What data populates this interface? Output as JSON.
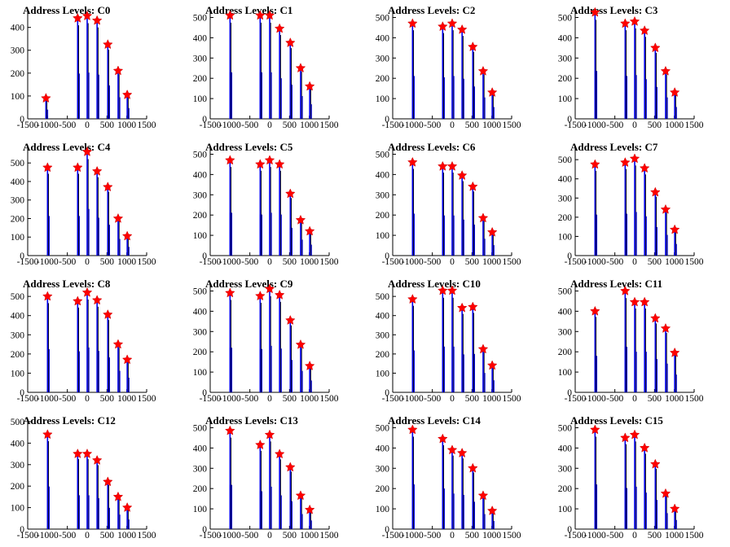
{
  "chart_data": [
    {
      "type": "bar",
      "title": "Address Levels: C0",
      "xlim": [
        -1500,
        1500
      ],
      "ylim": [
        0,
        470
      ],
      "yticks": [
        0,
        100,
        200,
        300,
        400
      ],
      "xticks": [
        -1500,
        -1000,
        -500,
        0,
        500,
        1000,
        1500
      ],
      "xtick_labels": [
        "-1500",
        "-1000",
        "-500",
        "0",
        "500",
        "1000",
        "1500"
      ],
      "peaks": [
        {
          "x": -1040,
          "y": 90
        },
        {
          "x": -240,
          "y": 440
        },
        {
          "x": 0,
          "y": 450
        },
        {
          "x": 250,
          "y": 430
        },
        {
          "x": 520,
          "y": 325
        },
        {
          "x": 780,
          "y": 210
        },
        {
          "x": 1010,
          "y": 105
        }
      ]
    },
    {
      "type": "bar",
      "title": "Address Levels: C1",
      "xlim": [
        -1500,
        1500
      ],
      "ylim": [
        0,
        530
      ],
      "yticks": [
        0,
        100,
        200,
        300,
        400,
        500
      ],
      "xticks": [
        -1500,
        -1000,
        -500,
        0,
        500,
        1000,
        1500
      ],
      "xtick_labels": [
        "-1500",
        "-1000",
        "-500",
        "0",
        "500",
        "1000",
        "1500"
      ],
      "peaks": [
        {
          "x": -1000,
          "y": 510
        },
        {
          "x": -240,
          "y": 510
        },
        {
          "x": 0,
          "y": 510
        },
        {
          "x": 250,
          "y": 445
        },
        {
          "x": 520,
          "y": 375
        },
        {
          "x": 780,
          "y": 250
        },
        {
          "x": 1010,
          "y": 160
        }
      ]
    },
    {
      "type": "bar",
      "title": "Address Levels: C2",
      "xlim": [
        -1500,
        1500
      ],
      "ylim": [
        0,
        530
      ],
      "yticks": [
        0,
        100,
        200,
        300,
        400,
        500
      ],
      "xticks": [
        -1500,
        -1000,
        -500,
        0,
        500,
        1000,
        1500
      ],
      "xtick_labels": [
        "-1500",
        "-1000",
        "-500",
        "0",
        "500",
        "1000",
        "1500"
      ],
      "peaks": [
        {
          "x": -1000,
          "y": 470
        },
        {
          "x": -240,
          "y": 455
        },
        {
          "x": 0,
          "y": 470
        },
        {
          "x": 250,
          "y": 440
        },
        {
          "x": 520,
          "y": 355
        },
        {
          "x": 780,
          "y": 235
        },
        {
          "x": 1010,
          "y": 130
        }
      ]
    },
    {
      "type": "bar",
      "title": "Address Levels: C3",
      "xlim": [
        -1500,
        1500
      ],
      "ylim": [
        0,
        530
      ],
      "yticks": [
        0,
        100,
        200,
        300,
        400,
        500
      ],
      "xticks": [
        -1500,
        -1000,
        -500,
        0,
        500,
        1000,
        1500
      ],
      "xtick_labels": [
        "-1500",
        "-1000",
        "-500",
        "0",
        "500",
        "1000",
        "1500"
      ],
      "peaks": [
        {
          "x": -1000,
          "y": 525
        },
        {
          "x": -240,
          "y": 470
        },
        {
          "x": 0,
          "y": 480
        },
        {
          "x": 250,
          "y": 435
        },
        {
          "x": 520,
          "y": 350
        },
        {
          "x": 780,
          "y": 235
        },
        {
          "x": 1010,
          "y": 130
        }
      ]
    },
    {
      "type": "bar",
      "title": "Address Levels: C4",
      "xlim": [
        -1500,
        1500
      ],
      "ylim": [
        0,
        580
      ],
      "yticks": [
        0,
        100,
        200,
        300,
        400,
        500
      ],
      "xticks": [
        -1500,
        -1000,
        -500,
        0,
        500,
        1000,
        1500
      ],
      "xtick_labels": [
        "-1500",
        "-1000",
        "-500",
        "0",
        "500",
        "1000",
        "1500"
      ],
      "peaks": [
        {
          "x": -1000,
          "y": 475
        },
        {
          "x": -240,
          "y": 475
        },
        {
          "x": 0,
          "y": 560
        },
        {
          "x": 250,
          "y": 455
        },
        {
          "x": 520,
          "y": 370
        },
        {
          "x": 780,
          "y": 200
        },
        {
          "x": 1010,
          "y": 105
        }
      ]
    },
    {
      "type": "bar",
      "title": "Address Levels: C5",
      "xlim": [
        -1500,
        1500
      ],
      "ylim": [
        0,
        530
      ],
      "yticks": [
        0,
        100,
        200,
        300,
        400,
        500
      ],
      "xticks": [
        -1500,
        -1000,
        -500,
        0,
        500,
        1000,
        1500
      ],
      "xtick_labels": [
        "-1500",
        "-1000",
        "-500",
        "0",
        "500",
        "1000",
        "1500"
      ],
      "peaks": [
        {
          "x": -1000,
          "y": 470
        },
        {
          "x": -240,
          "y": 450
        },
        {
          "x": 0,
          "y": 470
        },
        {
          "x": 250,
          "y": 450
        },
        {
          "x": 520,
          "y": 305
        },
        {
          "x": 780,
          "y": 175
        },
        {
          "x": 1010,
          "y": 120
        }
      ]
    },
    {
      "type": "bar",
      "title": "Address Levels: C6",
      "xlim": [
        -1500,
        1500
      ],
      "ylim": [
        0,
        530
      ],
      "yticks": [
        0,
        100,
        200,
        300,
        400,
        500
      ],
      "xticks": [
        -1500,
        -1000,
        -500,
        0,
        500,
        1000,
        1500
      ],
      "xtick_labels": [
        "-1500",
        "-1000",
        "-500",
        "0",
        "500",
        "1000",
        "1500"
      ],
      "peaks": [
        {
          "x": -1000,
          "y": 460
        },
        {
          "x": -240,
          "y": 440
        },
        {
          "x": 0,
          "y": 440
        },
        {
          "x": 250,
          "y": 395
        },
        {
          "x": 520,
          "y": 340
        },
        {
          "x": 780,
          "y": 185
        },
        {
          "x": 1010,
          "y": 115
        }
      ]
    },
    {
      "type": "bar",
      "title": "Address Levels: C7",
      "xlim": [
        -1500,
        1500
      ],
      "ylim": [
        0,
        560
      ],
      "yticks": [
        0,
        100,
        200,
        300,
        400,
        500
      ],
      "xticks": [
        -1500,
        -1000,
        -500,
        0,
        500,
        1000,
        1500
      ],
      "xtick_labels": [
        "-1500",
        "-1000",
        "-500",
        "0",
        "500",
        "1000",
        "1500"
      ],
      "peaks": [
        {
          "x": -1000,
          "y": 475
        },
        {
          "x": -240,
          "y": 485
        },
        {
          "x": 0,
          "y": 505
        },
        {
          "x": 250,
          "y": 455
        },
        {
          "x": 520,
          "y": 330
        },
        {
          "x": 780,
          "y": 240
        },
        {
          "x": 1010,
          "y": 135
        }
      ]
    },
    {
      "type": "bar",
      "title": "Address Levels: C8",
      "xlim": [
        -1500,
        1500
      ],
      "ylim": [
        0,
        560
      ],
      "yticks": [
        0,
        100,
        200,
        300,
        400,
        500
      ],
      "xticks": [
        -1500,
        -1000,
        -500,
        0,
        500,
        1000,
        1500
      ],
      "xtick_labels": [
        "-1500",
        "-1000",
        "-500",
        "0",
        "500",
        "1000",
        "1500"
      ],
      "peaks": [
        {
          "x": -1000,
          "y": 500
        },
        {
          "x": -240,
          "y": 475
        },
        {
          "x": 0,
          "y": 520
        },
        {
          "x": 250,
          "y": 480
        },
        {
          "x": 520,
          "y": 405
        },
        {
          "x": 780,
          "y": 250
        },
        {
          "x": 1010,
          "y": 170
        }
      ]
    },
    {
      "type": "bar",
      "title": "Address Levels: C9",
      "xlim": [
        -1500,
        1500
      ],
      "ylim": [
        0,
        530
      ],
      "yticks": [
        0,
        100,
        200,
        300,
        400,
        500
      ],
      "xticks": [
        -1500,
        -1000,
        -500,
        0,
        500,
        1000,
        1500
      ],
      "xtick_labels": [
        "-1500",
        "-1000",
        "-500",
        "0",
        "500",
        "1000",
        "1500"
      ],
      "peaks": [
        {
          "x": -1000,
          "y": 490
        },
        {
          "x": -240,
          "y": 475
        },
        {
          "x": 0,
          "y": 510
        },
        {
          "x": 250,
          "y": 480
        },
        {
          "x": 520,
          "y": 355
        },
        {
          "x": 780,
          "y": 235
        },
        {
          "x": 1010,
          "y": 130
        }
      ]
    },
    {
      "type": "bar",
      "title": "Address Levels: C10",
      "xlim": [
        -1500,
        1500
      ],
      "ylim": [
        0,
        560
      ],
      "yticks": [
        0,
        100,
        200,
        300,
        400,
        500
      ],
      "xticks": [
        -1500,
        -1000,
        -500,
        0,
        500,
        1000,
        1500
      ],
      "xtick_labels": [
        "-1500",
        "-1000",
        "-500",
        "0",
        "500",
        "1000",
        "1500"
      ],
      "peaks": [
        {
          "x": -1000,
          "y": 485
        },
        {
          "x": -240,
          "y": 530
        },
        {
          "x": 0,
          "y": 530
        },
        {
          "x": 250,
          "y": 440
        },
        {
          "x": 520,
          "y": 445
        },
        {
          "x": 780,
          "y": 225
        },
        {
          "x": 1010,
          "y": 140
        }
      ]
    },
    {
      "type": "bar",
      "title": "Address Levels: C11",
      "xlim": [
        -1500,
        1500
      ],
      "ylim": [
        0,
        530
      ],
      "yticks": [
        0,
        100,
        200,
        300,
        400,
        500
      ],
      "xticks": [
        -1500,
        -1000,
        -500,
        0,
        500,
        1000,
        1500
      ],
      "xtick_labels": [
        "-1500",
        "-1000",
        "-500",
        "0",
        "500",
        "1000",
        "1500"
      ],
      "peaks": [
        {
          "x": -1000,
          "y": 400
        },
        {
          "x": -240,
          "y": 500
        },
        {
          "x": 0,
          "y": 445
        },
        {
          "x": 250,
          "y": 445
        },
        {
          "x": 520,
          "y": 365
        },
        {
          "x": 780,
          "y": 315
        },
        {
          "x": 1010,
          "y": 195
        }
      ]
    },
    {
      "type": "bar",
      "title": "Address Levels: C12",
      "xlim": [
        -1500,
        1500
      ],
      "ylim": [
        0,
        500
      ],
      "yticks": [
        0,
        100,
        200,
        300,
        400,
        500
      ],
      "xticks": [
        -1500,
        -1000,
        -500,
        0,
        500,
        1000,
        1500
      ],
      "xtick_labels": [
        "-1500",
        "-1000",
        "-500",
        "0",
        "500",
        "1000",
        "1500"
      ],
      "peaks": [
        {
          "x": -1000,
          "y": 440
        },
        {
          "x": -240,
          "y": 350
        },
        {
          "x": 0,
          "y": 350
        },
        {
          "x": 250,
          "y": 320
        },
        {
          "x": 520,
          "y": 220
        },
        {
          "x": 780,
          "y": 150
        },
        {
          "x": 1010,
          "y": 100
        }
      ]
    },
    {
      "type": "bar",
      "title": "Address Levels: C13",
      "xlim": [
        -1500,
        1500
      ],
      "ylim": [
        0,
        530
      ],
      "yticks": [
        0,
        100,
        200,
        300,
        400,
        500
      ],
      "xticks": [
        -1500,
        -1000,
        -500,
        0,
        500,
        1000,
        1500
      ],
      "xtick_labels": [
        "-1500",
        "-1000",
        "-500",
        "0",
        "500",
        "1000",
        "1500"
      ],
      "peaks": [
        {
          "x": -1000,
          "y": 485
        },
        {
          "x": -240,
          "y": 415
        },
        {
          "x": 0,
          "y": 465
        },
        {
          "x": 250,
          "y": 370
        },
        {
          "x": 520,
          "y": 305
        },
        {
          "x": 780,
          "y": 165
        },
        {
          "x": 1010,
          "y": 95
        }
      ]
    },
    {
      "type": "bar",
      "title": "Address Levels: C14",
      "xlim": [
        -1500,
        1500
      ],
      "ylim": [
        0,
        530
      ],
      "yticks": [
        0,
        100,
        200,
        300,
        400,
        500
      ],
      "xticks": [
        -1500,
        -1000,
        -500,
        0,
        500,
        1000,
        1500
      ],
      "xtick_labels": [
        "-1500",
        "-1000",
        "-500",
        "0",
        "500",
        "1000",
        "1500"
      ],
      "peaks": [
        {
          "x": -1000,
          "y": 490
        },
        {
          "x": -240,
          "y": 445
        },
        {
          "x": 0,
          "y": 390
        },
        {
          "x": 250,
          "y": 375
        },
        {
          "x": 520,
          "y": 300
        },
        {
          "x": 780,
          "y": 165
        },
        {
          "x": 1010,
          "y": 90
        }
      ]
    },
    {
      "type": "bar",
      "title": "Address Levels: C15",
      "xlim": [
        -1500,
        1500
      ],
      "ylim": [
        0,
        530
      ],
      "yticks": [
        0,
        100,
        200,
        300,
        400,
        500
      ],
      "xticks": [
        -1500,
        -1000,
        -500,
        0,
        500,
        1000,
        1500
      ],
      "xtick_labels": [
        "-1500",
        "-1000",
        "-500",
        "0",
        "500",
        "1000",
        "1500"
      ],
      "peaks": [
        {
          "x": -1000,
          "y": 490
        },
        {
          "x": -240,
          "y": 450
        },
        {
          "x": 0,
          "y": 465
        },
        {
          "x": 250,
          "y": 400
        },
        {
          "x": 520,
          "y": 320
        },
        {
          "x": 780,
          "y": 175
        },
        {
          "x": 1010,
          "y": 100
        }
      ]
    }
  ],
  "colors": {
    "bar": "#0000ee",
    "overlay": "#000000",
    "marker": "#ff0000",
    "marker_outline": "#cc0000",
    "axis": "#000000"
  }
}
